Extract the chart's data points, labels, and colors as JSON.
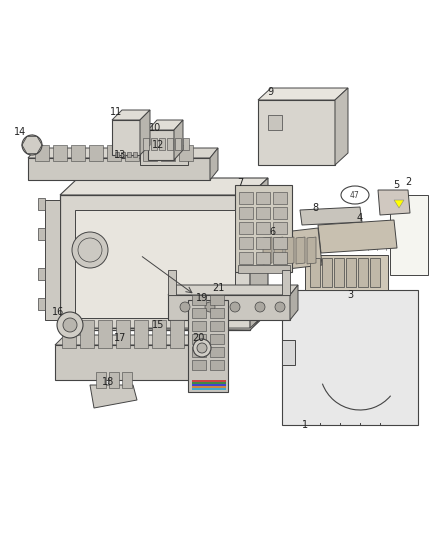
{
  "bg_color": "#ffffff",
  "line_color": "#444444",
  "label_color": "#222222",
  "fig_width": 4.38,
  "fig_height": 5.33,
  "dpi": 100,
  "label_fs": 7.0,
  "lw": 0.7
}
